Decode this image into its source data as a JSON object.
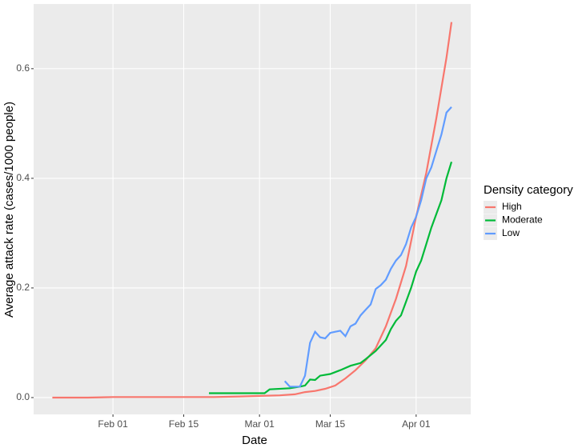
{
  "chart_data": {
    "type": "line",
    "x_label": "Date",
    "y_label": "Average attack rate (cases/1000 people)",
    "legend_title": "Density category",
    "legend_position": "right",
    "grid": true,
    "xlim": [
      -15.7,
      70.8
    ],
    "xticks": [
      {
        "value": 0,
        "label": "Feb 01"
      },
      {
        "value": 14,
        "label": "Feb 15"
      },
      {
        "value": 29,
        "label": "Mar 01"
      },
      {
        "value": 43,
        "label": "Mar 15"
      },
      {
        "value": 60,
        "label": "Apr 01"
      }
    ],
    "ylim": [
      -0.0307,
      0.718
    ],
    "yticks": [
      {
        "value": 0,
        "label": "0.0"
      },
      {
        "value": 0.2,
        "label": "0.2"
      },
      {
        "value": 0.4,
        "label": "0.4"
      },
      {
        "value": 0.6,
        "label": "0.6"
      }
    ],
    "series": [
      {
        "name": "High",
        "color": "#F8766D",
        "x": [
          -12,
          -5,
          0,
          10,
          20,
          25,
          29,
          33,
          36,
          38,
          40,
          42,
          44,
          46,
          48,
          50,
          52,
          54,
          56,
          58,
          60,
          62,
          64,
          66,
          67
        ],
        "values": [
          0.0,
          0.0,
          0.001,
          0.001,
          0.001,
          0.002,
          0.003,
          0.004,
          0.006,
          0.01,
          0.012,
          0.016,
          0.022,
          0.035,
          0.05,
          0.068,
          0.09,
          0.13,
          0.18,
          0.24,
          0.33,
          0.41,
          0.51,
          0.62,
          0.685
        ]
      },
      {
        "name": "Moderate",
        "color": "#00BA38",
        "x": [
          19,
          25,
          30,
          31,
          35,
          37,
          38,
          39,
          40,
          41,
          43,
          45,
          47,
          49,
          50,
          52,
          53,
          54,
          55,
          56,
          57,
          58,
          59,
          60,
          61,
          62,
          63,
          64,
          65,
          66,
          67
        ],
        "values": [
          0.008,
          0.008,
          0.008,
          0.015,
          0.017,
          0.02,
          0.022,
          0.033,
          0.032,
          0.04,
          0.043,
          0.05,
          0.058,
          0.063,
          0.07,
          0.085,
          0.095,
          0.105,
          0.125,
          0.14,
          0.15,
          0.175,
          0.2,
          0.23,
          0.25,
          0.28,
          0.31,
          0.335,
          0.36,
          0.4,
          0.43
        ]
      },
      {
        "name": "Low",
        "color": "#619CFF",
        "x": [
          34,
          35,
          36,
          37,
          38,
          39,
          40,
          41,
          42,
          43,
          44,
          45,
          46,
          47,
          48,
          49,
          50,
          51,
          52,
          53,
          54,
          55,
          56,
          57,
          58,
          59,
          60,
          61,
          62,
          63,
          64,
          65,
          66,
          67
        ],
        "values": [
          0.03,
          0.02,
          0.02,
          0.02,
          0.04,
          0.1,
          0.12,
          0.11,
          0.108,
          0.118,
          0.12,
          0.122,
          0.112,
          0.13,
          0.135,
          0.15,
          0.16,
          0.17,
          0.198,
          0.205,
          0.215,
          0.235,
          0.25,
          0.26,
          0.28,
          0.31,
          0.33,
          0.36,
          0.4,
          0.42,
          0.45,
          0.48,
          0.52,
          0.53
        ]
      }
    ]
  }
}
